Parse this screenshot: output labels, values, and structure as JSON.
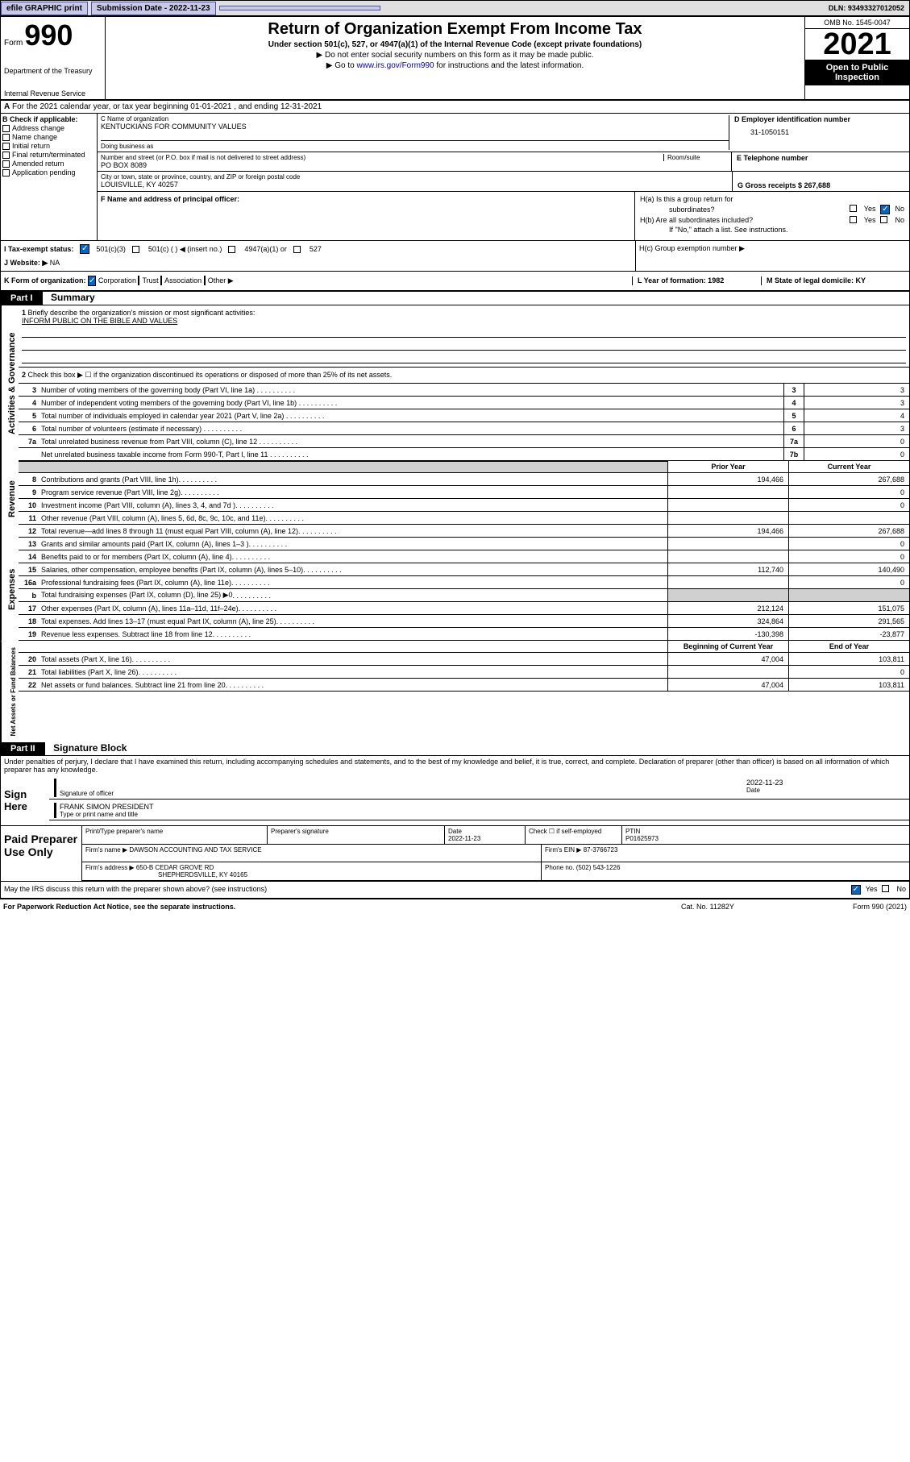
{
  "topbar": {
    "efile": "efile GRAPHIC print",
    "submission_label": "Submission Date - 2022-11-23",
    "dln_label": "DLN: 93493327012052"
  },
  "header": {
    "form_word": "Form",
    "form_number": "990",
    "dept": "Department of the Treasury",
    "irs": "Internal Revenue Service",
    "title": "Return of Organization Exempt From Income Tax",
    "subtitle": "Under section 501(c), 527, or 4947(a)(1) of the Internal Revenue Code (except private foundations)",
    "instr1": "Do not enter social security numbers on this form as it may be made public.",
    "instr2_pre": "Go to ",
    "instr2_link": "www.irs.gov/Form990",
    "instr2_post": " for instructions and the latest information.",
    "omb": "OMB No. 1545-0047",
    "year": "2021",
    "open": "Open to Public Inspection"
  },
  "row_a": {
    "text": "For the 2021 calendar year, or tax year beginning 01-01-2021     , and ending 12-31-2021",
    "prefix": "A"
  },
  "col_b": {
    "label": "B Check if applicable:",
    "items": [
      "Address change",
      "Name change",
      "Initial return",
      "Final return/terminated",
      "Amended return",
      "Application pending"
    ]
  },
  "org": {
    "c_label": "C Name of organization",
    "name": "KENTUCKIANS FOR COMMUNITY VALUES",
    "dba_label": "Doing business as",
    "addr_label": "Number and street (or P.O. box if mail is not delivered to street address)",
    "room_label": "Room/suite",
    "addr": "PO BOX 8089",
    "city_label": "City or town, state or province, country, and ZIP or foreign postal code",
    "city": "LOUISVILLE, KY  40257",
    "d_label": "D Employer identification number",
    "ein": "31-1050151",
    "e_label": "E Telephone number",
    "g_label": "G Gross receipts $ 267,688",
    "f_label": "F  Name and address of principal officer:"
  },
  "h": {
    "ha": "H(a)  Is this a group return for",
    "ha2": "subordinates?",
    "hb": "H(b)  Are all subordinates included?",
    "hb_note": "If \"No,\" attach a list. See instructions.",
    "hc": "H(c)  Group exemption number ▶",
    "yes": "Yes",
    "no": "No"
  },
  "i": {
    "label": "I    Tax-exempt status:",
    "opts": [
      "501(c)(3)",
      "501(c) (  ) ◀ (insert no.)",
      "4947(a)(1) or",
      "527"
    ]
  },
  "j": {
    "label": "J   Website: ▶",
    "val": "NA"
  },
  "k": {
    "label": "K Form of organization:",
    "opts": [
      "Corporation",
      "Trust",
      "Association",
      "Other ▶"
    ]
  },
  "l": {
    "label": "L Year of formation: 1982"
  },
  "m": {
    "label": "M State of legal domicile: KY"
  },
  "part1": {
    "part": "Part I",
    "title": "Summary",
    "side1": "Activities & Governance",
    "side2": "Revenue",
    "side3": "Expenses",
    "side4": "Net Assets or Fund Balances",
    "line1": "Briefly describe the organization's mission or most significant activities:",
    "mission": "INFORM PUBLIC ON THE BIBLE AND VALUES",
    "line2": "Check this box ▶ ☐  if the organization discontinued its operations or disposed of more than 25% of its net assets.",
    "lines_gov": [
      {
        "n": "3",
        "t": "Number of voting members of the governing body (Part VI, line 1a)",
        "b": "3",
        "v": "3"
      },
      {
        "n": "4",
        "t": "Number of independent voting members of the governing body (Part VI, line 1b)",
        "b": "4",
        "v": "3"
      },
      {
        "n": "5",
        "t": "Total number of individuals employed in calendar year 2021 (Part V, line 2a)",
        "b": "5",
        "v": "4"
      },
      {
        "n": "6",
        "t": "Total number of volunteers (estimate if necessary)",
        "b": "6",
        "v": "3"
      },
      {
        "n": "7a",
        "t": "Total unrelated business revenue from Part VIII, column (C), line 12",
        "b": "7a",
        "v": "0"
      },
      {
        "n": "",
        "t": "Net unrelated business taxable income from Form 990-T, Part I, line 11",
        "b": "7b",
        "v": "0"
      }
    ],
    "col_prior": "Prior Year",
    "col_curr": "Current Year",
    "lines_rev": [
      {
        "n": "8",
        "t": "Contributions and grants (Part VIII, line 1h)",
        "p": "194,466",
        "c": "267,688"
      },
      {
        "n": "9",
        "t": "Program service revenue (Part VIII, line 2g)",
        "p": "",
        "c": "0"
      },
      {
        "n": "10",
        "t": "Investment income (Part VIII, column (A), lines 3, 4, and 7d )",
        "p": "",
        "c": "0"
      },
      {
        "n": "11",
        "t": "Other revenue (Part VIII, column (A), lines 5, 6d, 8c, 9c, 10c, and 11e)",
        "p": "",
        "c": ""
      },
      {
        "n": "12",
        "t": "Total revenue—add lines 8 through 11 (must equal Part VIII, column (A), line 12)",
        "p": "194,466",
        "c": "267,688"
      }
    ],
    "lines_exp": [
      {
        "n": "13",
        "t": "Grants and similar amounts paid (Part IX, column (A), lines 1–3 )",
        "p": "",
        "c": "0"
      },
      {
        "n": "14",
        "t": "Benefits paid to or for members (Part IX, column (A), line 4)",
        "p": "",
        "c": "0"
      },
      {
        "n": "15",
        "t": "Salaries, other compensation, employee benefits (Part IX, column (A), lines 5–10)",
        "p": "112,740",
        "c": "140,490"
      },
      {
        "n": "16a",
        "t": "Professional fundraising fees (Part IX, column (A), line 11e)",
        "p": "",
        "c": "0"
      },
      {
        "n": "b",
        "t": "Total fundraising expenses (Part IX, column (D), line 25) ▶0",
        "p": "GRAY",
        "c": "GRAY"
      },
      {
        "n": "17",
        "t": "Other expenses (Part IX, column (A), lines 11a–11d, 11f–24e)",
        "p": "212,124",
        "c": "151,075"
      },
      {
        "n": "18",
        "t": "Total expenses. Add lines 13–17 (must equal Part IX, column (A), line 25)",
        "p": "324,864",
        "c": "291,565"
      },
      {
        "n": "19",
        "t": "Revenue less expenses. Subtract line 18 from line 12",
        "p": "-130,398",
        "c": "-23,877"
      }
    ],
    "col_begin": "Beginning of Current Year",
    "col_end": "End of Year",
    "lines_net": [
      {
        "n": "20",
        "t": "Total assets (Part X, line 16)",
        "p": "47,004",
        "c": "103,811"
      },
      {
        "n": "21",
        "t": "Total liabilities (Part X, line 26)",
        "p": "",
        "c": "0"
      },
      {
        "n": "22",
        "t": "Net assets or fund balances. Subtract line 21 from line 20",
        "p": "47,004",
        "c": "103,811"
      }
    ]
  },
  "part2": {
    "part": "Part II",
    "title": "Signature Block",
    "decl": "Under penalties of perjury, I declare that I have examined this return, including accompanying schedules and statements, and to the best of my knowledge and belief, it is true, correct, and complete. Declaration of preparer (other than officer) is based on all information of which preparer has any knowledge.",
    "sign_here": "Sign Here",
    "sig_officer": "Signature of officer",
    "date": "Date",
    "sig_date": "2022-11-23",
    "name_title": "FRANK SIMON PRESIDENT",
    "name_title_label": "Type or print name and title",
    "paid": "Paid Preparer Use Only",
    "pt_name": "Print/Type preparer's name",
    "pt_sig": "Preparer's signature",
    "pt_date_label": "Date",
    "pt_date": "2022-11-23",
    "check_self": "Check ☐ if self-employed",
    "ptin_label": "PTIN",
    "ptin": "P01625973",
    "firm_name_label": "Firm's name      ▶",
    "firm_name": "DAWSON ACCOUNTING AND TAX SERVICE",
    "firm_ein_label": "Firm's EIN ▶",
    "firm_ein": "87-3766723",
    "firm_addr_label": "Firm's address ▶",
    "firm_addr": "650-B CEDAR GROVE RD",
    "firm_city": "SHEPHERDSVILLE, KY  40165",
    "phone_label": "Phone no.",
    "phone": "(502) 543-1226",
    "may_irs": "May the IRS discuss this return with the preparer shown above? (see instructions)"
  },
  "footer": {
    "left": "For Paperwork Reduction Act Notice, see the separate instructions.",
    "mid": "Cat. No. 11282Y",
    "right": "Form 990 (2021)"
  }
}
